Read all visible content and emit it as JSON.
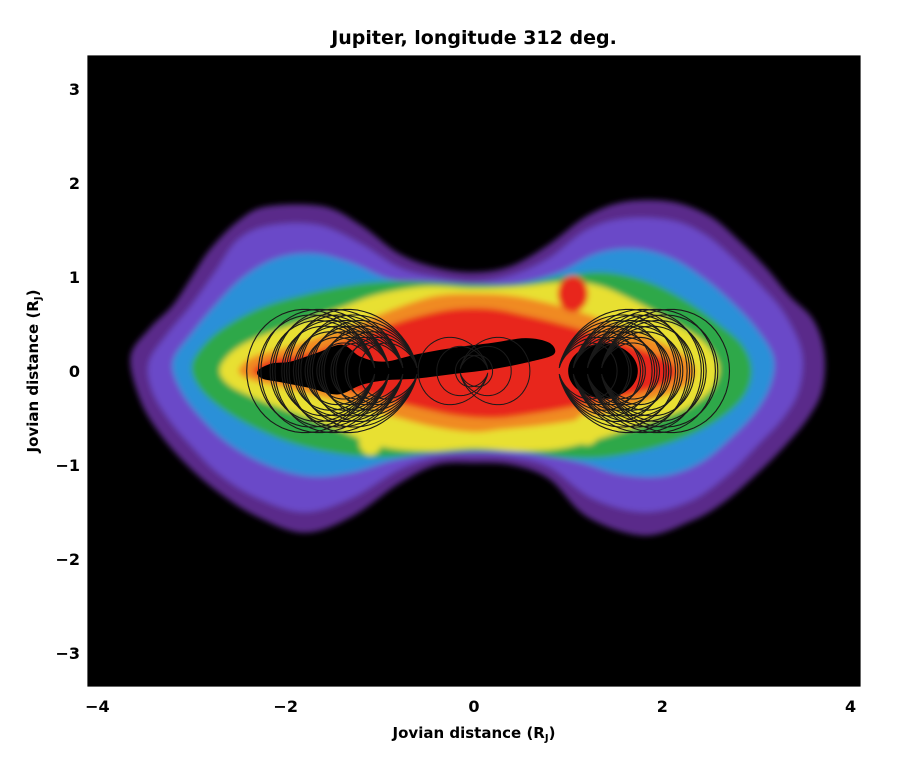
{
  "chart_data": {
    "type": "heatmap",
    "title": "Jupiter, longitude 312 deg.",
    "xlabel": "Jovian distance (R",
    "xlabel_sub": "J",
    "xlabel_close": ")",
    "ylabel": "Jovian distance (R",
    "ylabel_sub": "J",
    "ylabel_close": ")",
    "xlim": [
      -4.1,
      4.1
    ],
    "ylim": [
      -3.35,
      3.35
    ],
    "xticks": [
      -4,
      -2,
      0,
      2,
      4
    ],
    "xtick_labels": [
      "−4",
      "−2",
      "0",
      "2",
      "4"
    ],
    "yticks": [
      -3,
      -2,
      -1,
      0,
      1,
      2,
      3
    ],
    "ytick_labels": [
      "−3",
      "−2",
      "−1",
      "0",
      "1",
      "2",
      "3"
    ],
    "grid": false,
    "background_color": "#000000",
    "colormap": [
      "#5a2a8a",
      "#6a4ac8",
      "#2a90d8",
      "#2fa84a",
      "#e8e030",
      "#f08a20",
      "#e8281a"
    ],
    "emission_levels": [
      {
        "level": 1,
        "color": "#5a2a8a",
        "outline": [
          [
            -3.65,
            0.15
          ],
          [
            -3.45,
            0.45
          ],
          [
            -3.2,
            0.7
          ],
          [
            -3.0,
            1.0
          ],
          [
            -2.8,
            1.3
          ],
          [
            -2.5,
            1.6
          ],
          [
            -2.2,
            1.75
          ],
          [
            -1.6,
            1.75
          ],
          [
            -1.2,
            1.55
          ],
          [
            -0.8,
            1.25
          ],
          [
            -0.4,
            1.1
          ],
          [
            0,
            1.05
          ],
          [
            0.4,
            1.12
          ],
          [
            0.8,
            1.35
          ],
          [
            1.2,
            1.65
          ],
          [
            1.6,
            1.8
          ],
          [
            2.1,
            1.8
          ],
          [
            2.5,
            1.65
          ],
          [
            2.8,
            1.4
          ],
          [
            3.1,
            1.1
          ],
          [
            3.35,
            0.8
          ],
          [
            3.6,
            0.55
          ],
          [
            3.72,
            0.2
          ],
          [
            3.7,
            -0.2
          ],
          [
            3.55,
            -0.5
          ],
          [
            3.3,
            -0.8
          ],
          [
            3.0,
            -1.1
          ],
          [
            2.65,
            -1.4
          ],
          [
            2.3,
            -1.6
          ],
          [
            1.8,
            -1.75
          ],
          [
            1.2,
            -1.55
          ],
          [
            0.8,
            -1.15
          ],
          [
            0.4,
            -1.0
          ],
          [
            0,
            -0.98
          ],
          [
            -0.4,
            -1.0
          ],
          [
            -0.8,
            -1.2
          ],
          [
            -1.3,
            -1.55
          ],
          [
            -1.8,
            -1.72
          ],
          [
            -2.3,
            -1.55
          ],
          [
            -2.7,
            -1.3
          ],
          [
            -3.05,
            -1.0
          ],
          [
            -3.35,
            -0.65
          ],
          [
            -3.55,
            -0.3
          ]
        ]
      },
      {
        "level": 2,
        "color": "#6a4ac8",
        "outline": [
          [
            -3.45,
            0.1
          ],
          [
            -3.25,
            0.4
          ],
          [
            -3.0,
            0.7
          ],
          [
            -2.75,
            1.05
          ],
          [
            -2.5,
            1.4
          ],
          [
            -2.15,
            1.55
          ],
          [
            -1.65,
            1.55
          ],
          [
            -1.2,
            1.35
          ],
          [
            -0.8,
            1.1
          ],
          [
            -0.4,
            1.0
          ],
          [
            0,
            0.95
          ],
          [
            0.4,
            1.02
          ],
          [
            0.8,
            1.2
          ],
          [
            1.2,
            1.5
          ],
          [
            1.6,
            1.62
          ],
          [
            2.1,
            1.6
          ],
          [
            2.45,
            1.45
          ],
          [
            2.75,
            1.2
          ],
          [
            3.05,
            0.9
          ],
          [
            3.3,
            0.6
          ],
          [
            3.48,
            0.2
          ],
          [
            3.45,
            -0.2
          ],
          [
            3.28,
            -0.5
          ],
          [
            3.0,
            -0.8
          ],
          [
            2.7,
            -1.1
          ],
          [
            2.3,
            -1.38
          ],
          [
            1.8,
            -1.5
          ],
          [
            1.25,
            -1.35
          ],
          [
            0.8,
            -1.02
          ],
          [
            0.4,
            -0.92
          ],
          [
            0,
            -0.9
          ],
          [
            -0.4,
            -0.92
          ],
          [
            -0.8,
            -1.05
          ],
          [
            -1.3,
            -1.35
          ],
          [
            -1.8,
            -1.5
          ],
          [
            -2.3,
            -1.35
          ],
          [
            -2.7,
            -1.1
          ],
          [
            -3.0,
            -0.8
          ],
          [
            -3.25,
            -0.5
          ],
          [
            -3.42,
            -0.2
          ]
        ]
      },
      {
        "level": 3,
        "color": "#2a90d8",
        "outline": [
          [
            -3.2,
            0.1
          ],
          [
            -3.0,
            0.4
          ],
          [
            -2.75,
            0.7
          ],
          [
            -2.45,
            1.0
          ],
          [
            -2.1,
            1.2
          ],
          [
            -1.7,
            1.25
          ],
          [
            -1.3,
            1.15
          ],
          [
            -0.9,
            0.98
          ],
          [
            -0.45,
            0.92
          ],
          [
            0,
            0.9
          ],
          [
            0.45,
            0.93
          ],
          [
            0.9,
            1.05
          ],
          [
            1.3,
            1.25
          ],
          [
            1.7,
            1.3
          ],
          [
            2.1,
            1.2
          ],
          [
            2.45,
            0.98
          ],
          [
            2.75,
            0.72
          ],
          [
            3.0,
            0.45
          ],
          [
            3.18,
            0.15
          ],
          [
            3.15,
            -0.15
          ],
          [
            2.98,
            -0.45
          ],
          [
            2.72,
            -0.72
          ],
          [
            2.4,
            -0.98
          ],
          [
            2.0,
            -1.12
          ],
          [
            1.55,
            -1.1
          ],
          [
            1.15,
            -0.98
          ],
          [
            0.75,
            -0.9
          ],
          [
            0.35,
            -0.86
          ],
          [
            0,
            -0.85
          ],
          [
            -0.4,
            -0.87
          ],
          [
            -0.85,
            -0.95
          ],
          [
            -1.3,
            -1.08
          ],
          [
            -1.75,
            -1.12
          ],
          [
            -2.2,
            -1.0
          ],
          [
            -2.6,
            -0.78
          ],
          [
            -2.9,
            -0.5
          ],
          [
            -3.12,
            -0.2
          ]
        ]
      },
      {
        "level": 4,
        "color": "#2fa84a",
        "outline": [
          [
            -3.0,
            0.05
          ],
          [
            -2.85,
            0.3
          ],
          [
            -2.6,
            0.5
          ],
          [
            -2.25,
            0.68
          ],
          [
            -1.85,
            0.8
          ],
          [
            -1.4,
            0.9
          ],
          [
            -1.0,
            0.95
          ],
          [
            -0.5,
            0.95
          ],
          [
            0,
            0.92
          ],
          [
            0.5,
            0.93
          ],
          [
            1.0,
            1.02
          ],
          [
            1.4,
            1.05
          ],
          [
            1.85,
            0.95
          ],
          [
            2.25,
            0.75
          ],
          [
            2.6,
            0.5
          ],
          [
            2.85,
            0.28
          ],
          [
            2.95,
            0.02
          ],
          [
            2.88,
            -0.25
          ],
          [
            2.65,
            -0.48
          ],
          [
            2.3,
            -0.68
          ],
          [
            1.9,
            -0.82
          ],
          [
            1.4,
            -0.92
          ],
          [
            0.95,
            -0.92
          ],
          [
            0.5,
            -0.86
          ],
          [
            0,
            -0.85
          ],
          [
            -0.5,
            -0.88
          ],
          [
            -1.0,
            -0.92
          ],
          [
            -1.45,
            -0.88
          ],
          [
            -1.9,
            -0.78
          ],
          [
            -2.3,
            -0.62
          ],
          [
            -2.65,
            -0.42
          ],
          [
            -2.9,
            -0.2
          ]
        ]
      },
      {
        "level": 5,
        "color": "#e8e030",
        "outline": [
          [
            -2.7,
            0.02
          ],
          [
            -2.55,
            0.22
          ],
          [
            -2.25,
            0.38
          ],
          [
            -1.85,
            0.52
          ],
          [
            -1.4,
            0.68
          ],
          [
            -1.0,
            0.82
          ],
          [
            -0.5,
            0.9
          ],
          [
            0,
            0.88
          ],
          [
            0.5,
            0.9
          ],
          [
            1.0,
            0.95
          ],
          [
            1.35,
            0.9
          ],
          [
            1.75,
            0.72
          ],
          [
            2.15,
            0.5
          ],
          [
            2.45,
            0.3
          ],
          [
            2.6,
            0.05
          ],
          [
            2.52,
            -0.2
          ],
          [
            2.25,
            -0.4
          ],
          [
            1.85,
            -0.55
          ],
          [
            1.4,
            -0.7
          ],
          [
            0.95,
            -0.82
          ],
          [
            0.5,
            -0.85
          ],
          [
            0,
            -0.82
          ],
          [
            -0.5,
            -0.85
          ],
          [
            -1.0,
            -0.8
          ],
          [
            -1.45,
            -0.62
          ],
          [
            -1.9,
            -0.45
          ],
          [
            -2.3,
            -0.3
          ],
          [
            -2.6,
            -0.15
          ]
        ]
      },
      {
        "level": 6,
        "color": "#f08a20",
        "outline": [
          [
            -2.5,
            0.0
          ],
          [
            -2.35,
            0.15
          ],
          [
            -2.0,
            0.25
          ],
          [
            -1.6,
            0.38
          ],
          [
            -1.2,
            0.52
          ],
          [
            -0.8,
            0.68
          ],
          [
            -0.4,
            0.8
          ],
          [
            0,
            0.82
          ],
          [
            0.4,
            0.8
          ],
          [
            0.8,
            0.72
          ],
          [
            1.15,
            0.62
          ],
          [
            1.55,
            0.48
          ],
          [
            1.95,
            0.32
          ],
          [
            2.25,
            0.15
          ],
          [
            2.35,
            -0.02
          ],
          [
            2.22,
            -0.18
          ],
          [
            1.9,
            -0.3
          ],
          [
            1.5,
            -0.42
          ],
          [
            1.1,
            -0.52
          ],
          [
            0.7,
            -0.58
          ],
          [
            0.3,
            -0.62
          ],
          [
            0,
            -0.65
          ],
          [
            -0.4,
            -0.6
          ],
          [
            -0.8,
            -0.5
          ],
          [
            -1.2,
            -0.38
          ],
          [
            -1.6,
            -0.28
          ],
          [
            -2.0,
            -0.18
          ],
          [
            -2.35,
            -0.1
          ]
        ]
      },
      {
        "level": 7,
        "color": "#e8281a",
        "outline": [
          [
            -2.35,
            0.0
          ],
          [
            -2.15,
            0.12
          ],
          [
            -1.8,
            0.18
          ],
          [
            -1.4,
            0.3
          ],
          [
            -1.0,
            0.45
          ],
          [
            -0.6,
            0.58
          ],
          [
            -0.2,
            0.66
          ],
          [
            0.2,
            0.66
          ],
          [
            0.6,
            0.58
          ],
          [
            1.0,
            0.48
          ],
          [
            1.4,
            0.36
          ],
          [
            1.8,
            0.22
          ],
          [
            2.1,
            0.08
          ],
          [
            2.12,
            -0.08
          ],
          [
            1.85,
            -0.2
          ],
          [
            1.45,
            -0.3
          ],
          [
            1.05,
            -0.38
          ],
          [
            0.65,
            -0.45
          ],
          [
            0.25,
            -0.5
          ],
          [
            -0.15,
            -0.48
          ],
          [
            -0.55,
            -0.4
          ],
          [
            -0.95,
            -0.3
          ],
          [
            -1.35,
            -0.2
          ],
          [
            -1.75,
            -0.12
          ],
          [
            -2.15,
            -0.08
          ]
        ]
      }
    ],
    "hotspots": [
      {
        "x": 1.05,
        "y": 0.82,
        "r": 0.16,
        "color": "#e8281a"
      },
      {
        "x": -1.1,
        "y": -0.75,
        "r": 0.12,
        "color": "#e8e030"
      },
      {
        "x": 1.2,
        "y": -0.62,
        "r": 0.14,
        "color": "#e8e030"
      }
    ],
    "planet_disk": {
      "color": "#000000",
      "blob": [
        [
          -2.3,
          0.0
        ],
        [
          -2.15,
          0.08
        ],
        [
          -1.95,
          0.1
        ],
        [
          -1.65,
          0.2
        ],
        [
          -1.4,
          0.28
        ],
        [
          -1.2,
          0.15
        ],
        [
          -0.95,
          0.1
        ],
        [
          -0.6,
          0.18
        ],
        [
          -0.2,
          0.25
        ],
        [
          0.2,
          0.3
        ],
        [
          0.55,
          0.35
        ],
        [
          0.8,
          0.3
        ],
        [
          0.85,
          0.18
        ],
        [
          0.6,
          0.1
        ],
        [
          0.2,
          0.02
        ],
        [
          -0.2,
          -0.03
        ],
        [
          -0.6,
          -0.08
        ],
        [
          -0.95,
          -0.1
        ],
        [
          -1.2,
          -0.15
        ],
        [
          -1.45,
          -0.25
        ],
        [
          -1.75,
          -0.18
        ],
        [
          -2.05,
          -0.12
        ],
        [
          -2.25,
          -0.08
        ]
      ],
      "satellite": {
        "cx": 1.37,
        "cy": 0.0,
        "rx": 0.37,
        "ry": 0.29
      }
    },
    "field_lines": {
      "color": "#1a1a1a",
      "dipole_L_values": [
        1.0,
        1.2,
        1.4,
        1.6,
        1.8,
        2.0,
        2.2
      ],
      "left_centers": [
        -1.05,
        -0.9,
        -0.75,
        -0.6
      ],
      "right_centers": [
        0.9,
        1.05,
        1.2,
        1.35
      ]
    }
  }
}
